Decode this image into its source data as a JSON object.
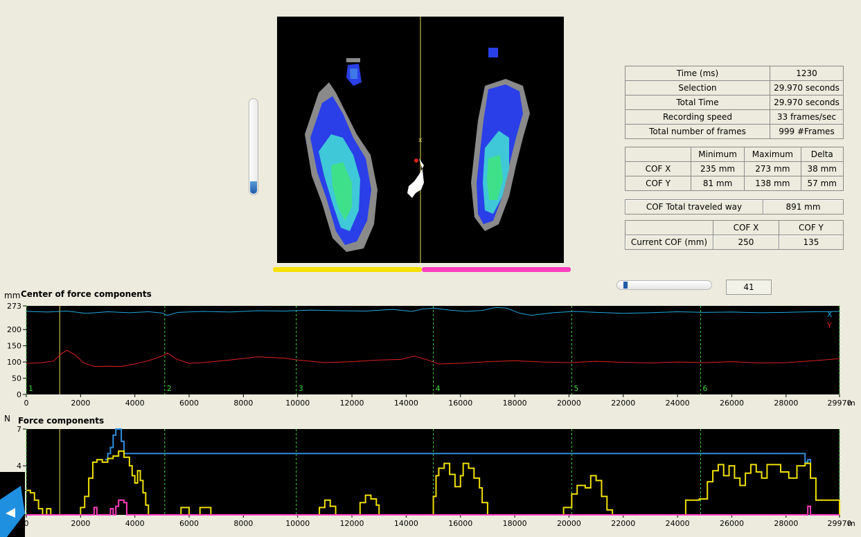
{
  "info_table": {
    "rows": [
      {
        "label": "Time (ms)",
        "value": "1230"
      },
      {
        "label": "Selection",
        "value": "29.970 seconds"
      },
      {
        "label": "Total Time",
        "value": "29.970 seconds"
      },
      {
        "label": "Recording speed",
        "value": "33 frames/sec"
      },
      {
        "label": "Total number of frames",
        "value": "999 #Frames"
      }
    ]
  },
  "cof_range_table": {
    "headers": [
      "",
      "Minimum",
      "Maximum",
      "Delta"
    ],
    "rows": [
      {
        "label": "COF X",
        "min": "235 mm",
        "max": "273 mm",
        "delta": "38 mm"
      },
      {
        "label": "COF Y",
        "min": "81 mm",
        "max": "138 mm",
        "delta": "57 mm"
      }
    ]
  },
  "cof_travel": {
    "label": "COF Total traveled way",
    "value": "891 mm"
  },
  "current_cof": {
    "headers": [
      "",
      "COF X",
      "COF Y"
    ],
    "label": "Current COF (mm)",
    "x": "250",
    "y": "135"
  },
  "frame_counter": "41",
  "slider_position": 0.04,
  "balance": {
    "left_fraction": 0.5,
    "left_color": "#f5e000",
    "right_color": "#ff3fbf"
  },
  "chart_data": [
    {
      "type": "line",
      "title": "Center of force components",
      "unit": "mm",
      "x_unit_label": "m",
      "xlim": [
        0,
        29970
      ],
      "ylim": [
        0,
        273
      ],
      "yticks": [
        0,
        50,
        100,
        150,
        200,
        273
      ],
      "ytick_labels": [
        "0",
        "50",
        "100",
        "150",
        "200",
        "273"
      ],
      "xticks": [
        0,
        2000,
        4000,
        6000,
        8000,
        10000,
        12000,
        14000,
        16000,
        18000,
        20000,
        22000,
        24000,
        26000,
        28000,
        29970
      ],
      "xtick_labels": [
        "0",
        "2000",
        "4000",
        "6000",
        "8000",
        "10000",
        "12000",
        "14000",
        "16000",
        "18000",
        "20000",
        "22000",
        "24000",
        "26000",
        "28000",
        "29970"
      ],
      "cursor_x": 1230,
      "markers": [
        {
          "x": 0,
          "label": "1"
        },
        {
          "x": 5100,
          "label": "2"
        },
        {
          "x": 9950,
          "label": "3"
        },
        {
          "x": 15000,
          "label": "4"
        },
        {
          "x": 20100,
          "label": "5"
        },
        {
          "x": 24850,
          "label": "6"
        },
        {
          "x": 29970,
          "label": ""
        }
      ],
      "legend": [
        {
          "name": "X",
          "color": "#22a9e0"
        },
        {
          "name": "Y",
          "color": "#e02020"
        }
      ],
      "series": [
        {
          "name": "X",
          "color": "#22a9e0",
          "x": [
            0,
            800,
            1500,
            2200,
            3000,
            3800,
            4500,
            5000,
            5200,
            5600,
            6500,
            7500,
            8500,
            9500,
            10500,
            11500,
            12500,
            13500,
            14200,
            14600,
            15000,
            15600,
            16200,
            16800,
            17300,
            17700,
            18200,
            18600,
            19400,
            20200,
            21000,
            22000,
            23000,
            24000,
            25000,
            26000,
            27000,
            28000,
            29000,
            29970
          ],
          "y": [
            256,
            254,
            257,
            250,
            255,
            252,
            255,
            251,
            244,
            253,
            256,
            254,
            258,
            257,
            260,
            258,
            257,
            262,
            256,
            263,
            266,
            260,
            256,
            259,
            268,
            266,
            250,
            244,
            252,
            256,
            253,
            250,
            252,
            255,
            253,
            254,
            252,
            253,
            255,
            256
          ]
        },
        {
          "name": "Y",
          "color": "#e02020",
          "x": [
            0,
            500,
            1000,
            1300,
            1500,
            1800,
            2100,
            2500,
            3000,
            3500,
            4000,
            4500,
            5000,
            5200,
            5500,
            6000,
            6500,
            7500,
            8500,
            9500,
            10000,
            11000,
            12000,
            13000,
            13800,
            14300,
            14800,
            15200,
            16000,
            17000,
            18000,
            19000,
            20000,
            21000,
            22000,
            23000,
            24000,
            25000,
            26000,
            27000,
            28000,
            29000,
            29970
          ],
          "y": [
            96,
            97,
            103,
            126,
            136,
            122,
            98,
            86,
            87,
            86,
            94,
            104,
            118,
            128,
            110,
            96,
            98,
            106,
            116,
            112,
            106,
            98,
            101,
            106,
            108,
            118,
            106,
            94,
            96,
            101,
            104,
            100,
            98,
            102,
            99,
            97,
            100,
            98,
            101,
            97,
            98,
            104,
            110
          ]
        }
      ]
    },
    {
      "type": "line",
      "title": "Force components",
      "unit": "N",
      "x_unit_label": "m",
      "xlim": [
        0,
        29970
      ],
      "ylim": [
        0,
        7
      ],
      "yticks": [
        0,
        2,
        4,
        7
      ],
      "ytick_labels": [
        "0",
        "2",
        "4",
        "7"
      ],
      "xticks": [
        0,
        2000,
        4000,
        6000,
        8000,
        10000,
        12000,
        14000,
        16000,
        18000,
        20000,
        22000,
        24000,
        26000,
        28000,
        29970
      ],
      "xtick_labels": [
        "0",
        "2000",
        "4000",
        "6000",
        "8000",
        "10000",
        "12000",
        "14000",
        "16000",
        "18000",
        "20000",
        "22000",
        "24000",
        "26000",
        "28000",
        "29970"
      ],
      "cursor_x": 1230,
      "markers": [
        {
          "x": 0,
          "label": ""
        },
        {
          "x": 5100,
          "label": ""
        },
        {
          "x": 9950,
          "label": ""
        },
        {
          "x": 15000,
          "label": ""
        },
        {
          "x": 20100,
          "label": ""
        },
        {
          "x": 24850,
          "label": ""
        },
        {
          "x": 29970,
          "label": ""
        }
      ],
      "series": [
        {
          "name": "",
          "color": "#2e8fe0",
          "x": [
            2900,
            3000,
            3100,
            3200,
            3300,
            3400,
            3500,
            3600,
            28700,
            28800,
            28900
          ],
          "y": [
            4.5,
            5.0,
            5.5,
            6.5,
            7.0,
            7.0,
            6.0,
            5.0,
            4.3,
            4.5,
            4.2
          ]
        },
        {
          "name": "",
          "color": "#f0e000",
          "x": [
            0,
            150,
            300,
            450,
            600,
            750,
            900,
            1800,
            2000,
            2150,
            2300,
            2450,
            2600,
            2800,
            3000,
            3200,
            3400,
            3600,
            3800,
            3900,
            4000,
            4100,
            4200,
            4300,
            4400,
            4500,
            5100,
            5600,
            5700,
            6000,
            6300,
            6400,
            6800,
            6900,
            7100,
            10700,
            10800,
            11000,
            11200,
            11400,
            12200,
            12300,
            12500,
            12700,
            12900,
            13000,
            13200,
            14900,
            15000,
            15100,
            15200,
            15400,
            15600,
            15800,
            16000,
            16100,
            16300,
            16500,
            16700,
            16800,
            17000,
            17200,
            17400,
            19700,
            19800,
            20100,
            20300,
            20600,
            20800,
            21000,
            21200,
            21400,
            21600,
            21800,
            23000,
            24200,
            24300,
            24800,
            25100,
            25300,
            25500,
            25700,
            25900,
            26100,
            26300,
            26500,
            26700,
            26900,
            27100,
            27300,
            27600,
            27800,
            28100,
            28400,
            28700,
            28900,
            29100,
            29970
          ],
          "y": [
            2.0,
            1.8,
            1.2,
            0.5,
            0.0,
            0.5,
            0.0,
            0.0,
            0.6,
            1.5,
            3.0,
            4.3,
            4.5,
            4.3,
            4.6,
            4.8,
            5.2,
            4.7,
            4.0,
            3.2,
            2.6,
            3.6,
            2.8,
            1.8,
            0.8,
            0.0,
            0.0,
            0.0,
            0.6,
            0.0,
            0.0,
            0.6,
            0.0,
            0.0,
            0.0,
            0.0,
            0.6,
            1.2,
            0.7,
            0.0,
            0.0,
            1.0,
            1.6,
            1.3,
            0.8,
            0.0,
            0.0,
            0.0,
            1.5,
            3.2,
            3.8,
            4.2,
            3.3,
            2.3,
            3.2,
            4.2,
            3.8,
            3.0,
            2.2,
            1.0,
            0.0,
            0.0,
            0.0,
            0.0,
            0.6,
            1.7,
            2.4,
            2.2,
            3.2,
            2.8,
            1.5,
            0.4,
            0.0,
            0.0,
            0.0,
            0.0,
            1.2,
            1.3,
            2.7,
            3.6,
            4.1,
            3.2,
            4.0,
            3.0,
            2.4,
            3.4,
            4.1,
            3.5,
            3.0,
            4.1,
            4.1,
            3.5,
            3.0,
            4.0,
            4.2,
            3.0,
            1.2,
            0.0
          ]
        },
        {
          "name": "",
          "color": "#ff3fbf",
          "x": [
            0,
            2400,
            2500,
            2600,
            3000,
            3100,
            3200,
            3300,
            3400,
            3500,
            3600,
            3700,
            28700,
            28800,
            28900,
            29970
          ],
          "y": [
            0,
            0,
            0.6,
            0,
            0,
            0.5,
            0,
            0.7,
            1.2,
            1.2,
            1.0,
            0,
            0,
            0.7,
            0,
            0
          ]
        }
      ]
    }
  ]
}
